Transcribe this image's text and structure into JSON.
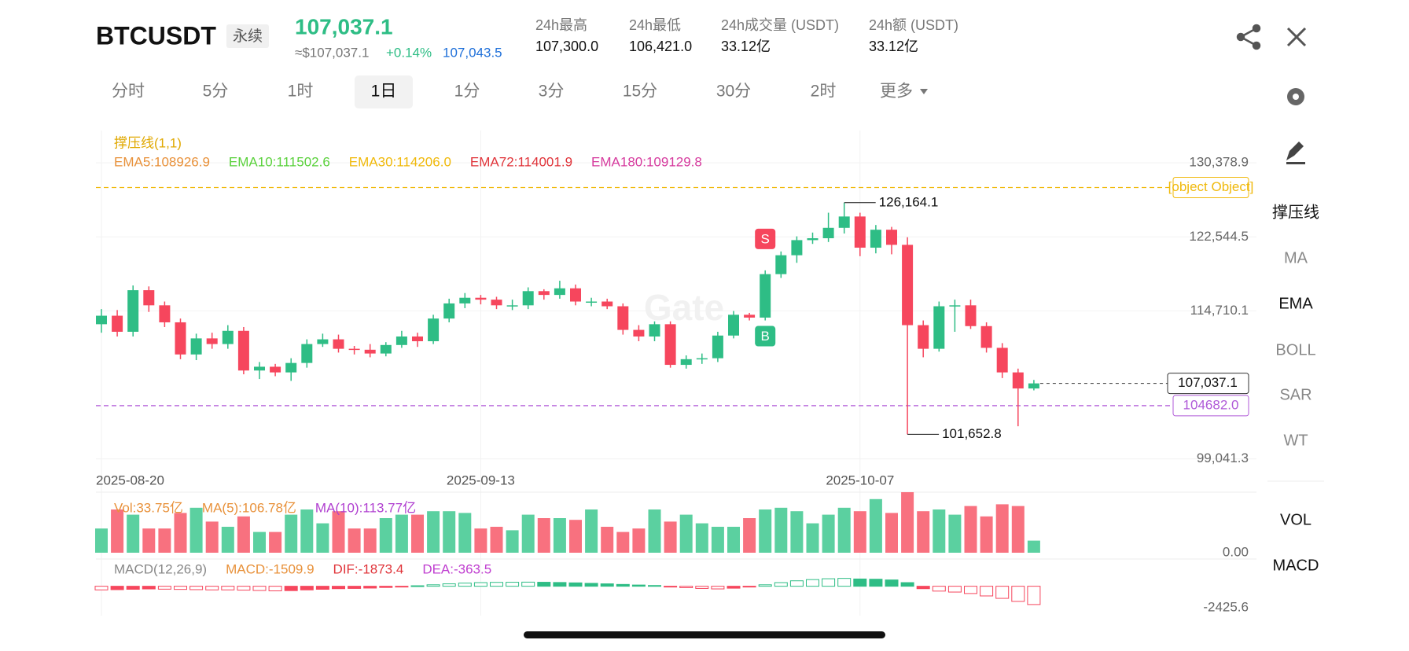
{
  "header": {
    "symbol": "BTCUSDT",
    "tag": "永续",
    "price": "107,037.1",
    "usd_price": "≈$107,037.1",
    "change": "+0.14%",
    "mark_price": "107,043.5",
    "stats": [
      {
        "label": "24h最高",
        "value": "107,300.0"
      },
      {
        "label": "24h最低",
        "value": "106,421.0"
      },
      {
        "label": "24h成交量 (USDT)",
        "value": "33.12亿"
      },
      {
        "label": "24h额 (USDT)",
        "value": "33.12亿"
      }
    ]
  },
  "tabs": [
    "分时",
    "5分",
    "1时",
    "1日",
    "1分",
    "3分",
    "15分",
    "30分",
    "2时",
    "更多"
  ],
  "active_tab": 3,
  "chart": {
    "indicator_title": "撑压线(1,1)",
    "watermark": "Gate",
    "ema_legend": [
      {
        "label": "EMA5:108926.9",
        "color": "#e8913a"
      },
      {
        "label": "EMA10:111502.6",
        "color": "#5ad13c"
      },
      {
        "label": "EMA30:114206.0",
        "color": "#f0b90b"
      },
      {
        "label": "EMA72:114001.9",
        "color": "#e0343a"
      },
      {
        "label": "EMA180:109129.8",
        "color": "#d63b9e"
      }
    ],
    "ylim": [
      98186,
      133800
    ],
    "yticks": [
      {
        "value": 99041.3,
        "label": "99,041.3"
      },
      {
        "value": 114710.1,
        "label": "114,710.1"
      },
      {
        "value": 122544.5,
        "label": "122,544.5"
      },
      {
        "value": 130378.9,
        "label": "130,378.9"
      }
    ],
    "up_color": "#2ebd85",
    "down_color": "#f6465d",
    "dates": [
      "2025-08-20",
      null,
      null,
      null,
      null,
      null,
      null,
      null,
      null,
      null,
      null,
      null,
      null,
      null,
      null,
      null,
      null,
      null,
      null,
      null,
      null,
      null,
      null,
      null,
      "2025-09-13",
      null,
      null,
      null,
      null,
      null,
      null,
      null,
      null,
      null,
      null,
      null,
      null,
      null,
      null,
      null,
      null,
      null,
      null,
      null,
      null,
      null,
      null,
      null,
      "2025-10-07",
      null,
      null,
      null,
      null,
      null,
      null,
      null,
      null,
      null,
      null,
      null
    ],
    "candles": [
      [
        113300,
        114900,
        112400,
        114200
      ],
      [
        114200,
        114800,
        112000,
        112500
      ],
      [
        112500,
        117400,
        112000,
        116900
      ],
      [
        116900,
        117300,
        114600,
        115300
      ],
      [
        115300,
        115700,
        113000,
        113500
      ],
      [
        113500,
        113900,
        109600,
        110100
      ],
      [
        110100,
        112300,
        109500,
        111800
      ],
      [
        111800,
        112400,
        110700,
        111200
      ],
      [
        111200,
        113200,
        110700,
        112600
      ],
      [
        112600,
        113000,
        108000,
        108400
      ],
      [
        108400,
        109300,
        107500,
        108800
      ],
      [
        108800,
        109100,
        107800,
        108200
      ],
      [
        108200,
        109700,
        107300,
        109200
      ],
      [
        109200,
        111700,
        108700,
        111200
      ],
      [
        111200,
        112300,
        110900,
        111700
      ],
      [
        111700,
        112200,
        110300,
        110700
      ],
      [
        110700,
        111000,
        110100,
        110600
      ],
      [
        110600,
        111200,
        109800,
        110200
      ],
      [
        110200,
        111400,
        109900,
        111100
      ],
      [
        111100,
        112600,
        110800,
        112000
      ],
      [
        112000,
        112400,
        110900,
        111500
      ],
      [
        111500,
        114300,
        111200,
        113900
      ],
      [
        113900,
        116000,
        113500,
        115500
      ],
      [
        115500,
        116600,
        115000,
        116100
      ],
      [
        116100,
        116400,
        115400,
        115900
      ],
      [
        115900,
        116200,
        114900,
        115300
      ],
      [
        115300,
        115900,
        114800,
        115300
      ],
      [
        115300,
        117200,
        114900,
        116800
      ],
      [
        116800,
        117000,
        115900,
        116400
      ],
      [
        116400,
        117900,
        116000,
        117100
      ],
      [
        117100,
        117500,
        115300,
        115700
      ],
      [
        115700,
        116100,
        115200,
        115700
      ],
      [
        115700,
        116000,
        114900,
        115200
      ],
      [
        115200,
        115500,
        112200,
        112700
      ],
      [
        112700,
        113200,
        111500,
        112000
      ],
      [
        112000,
        113600,
        111500,
        113300
      ],
      [
        113300,
        113600,
        108700,
        109000
      ],
      [
        109000,
        110000,
        108600,
        109600
      ],
      [
        109600,
        110200,
        109100,
        109700
      ],
      [
        109700,
        112500,
        109300,
        112100
      ],
      [
        112100,
        114700,
        111800,
        114300
      ],
      [
        114300,
        114500,
        113700,
        114000
      ],
      [
        114000,
        119000,
        113700,
        118600
      ],
      [
        118600,
        121000,
        118200,
        120600
      ],
      [
        120600,
        122600,
        119800,
        122200
      ],
      [
        122200,
        123000,
        121800,
        122400
      ],
      [
        122400,
        125100,
        122000,
        123500
      ],
      [
        123500,
        126164.1,
        122900,
        124700
      ],
      [
        124700,
        125100,
        120500,
        121400
      ],
      [
        121400,
        123800,
        120800,
        123300
      ],
      [
        123300,
        123600,
        120700,
        121700
      ],
      [
        121700,
        122500,
        101652.8,
        113200
      ],
      [
        113200,
        113700,
        109800,
        110700
      ],
      [
        110700,
        115700,
        110400,
        115200
      ],
      [
        115200,
        115900,
        112500,
        115300
      ],
      [
        115300,
        115900,
        112800,
        113100
      ],
      [
        113100,
        113500,
        110300,
        110800
      ],
      [
        110800,
        111300,
        107600,
        108200
      ],
      [
        108200,
        108600,
        102500,
        106500
      ],
      [
        106500,
        107400,
        106300,
        107037.1
      ]
    ],
    "levels": [
      {
        "value": 127767.4,
        "color": "#f0b90b"
      },
      {
        "value": 104682.0,
        "label": "104682.0",
        "color": "#b05ad8"
      }
    ],
    "last_price": {
      "value": 107037.1,
      "label": "107,037.1"
    },
    "high_annotation": {
      "value": 126164.1,
      "label": "126,164.1"
    },
    "low_annotation": {
      "value": 101652.8,
      "label": "101,652.8"
    },
    "signals": [
      {
        "label": "S",
        "candle": 42,
        "color": "#f6465d"
      },
      {
        "label": "B",
        "candle": 42,
        "color": "#2ebd85"
      }
    ],
    "volume": {
      "legend": [
        {
          "label": "Vol:33.75亿",
          "color": "#e8913a"
        },
        {
          "label": "MA(5):106.78亿",
          "color": "#e8913a"
        },
        {
          "label": "MA(10):113.77亿",
          "color": "#b03fd0"
        }
      ],
      "ylim": [
        0,
        70
      ],
      "zero_label": {
        "value": 0,
        "label": "0.00"
      },
      "values": [
        28,
        50,
        44,
        28,
        28,
        46,
        52,
        36,
        30,
        42,
        24,
        24,
        44,
        50,
        34,
        48,
        28,
        28,
        40,
        44,
        44,
        48,
        48,
        46,
        28,
        30,
        26,
        44,
        40,
        40,
        38,
        50,
        30,
        24,
        28,
        50,
        36,
        44,
        34,
        30,
        30,
        40,
        50,
        52,
        48,
        34,
        44,
        52,
        48,
        62,
        46,
        70,
        48,
        50,
        44,
        54,
        42,
        56,
        54,
        14
      ]
    },
    "macd": {
      "legend": [
        {
          "label": "MACD(12,26,9)",
          "color": "#888"
        },
        {
          "label": "MACD:-1509.9",
          "color": "#e8913a"
        },
        {
          "label": "DIF:-1873.4",
          "color": "#e0343a"
        },
        {
          "label": "DEA:-363.5",
          "color": "#c03fd0"
        }
      ],
      "ylim": [
        -2425.6,
        2250
      ],
      "bottom_label": {
        "value": -2425.6,
        "label": "-2425.6"
      },
      "values": [
        -300,
        -280,
        -250,
        -220,
        -240,
        -260,
        -280,
        -300,
        -300,
        -320,
        -350,
        -380,
        -360,
        -300,
        -250,
        -200,
        -180,
        -150,
        -100,
        -60,
        40,
        120,
        200,
        260,
        300,
        320,
        330,
        340,
        330,
        310,
        280,
        240,
        200,
        150,
        100,
        60,
        -40,
        -120,
        -180,
        -220,
        -160,
        -60,
        120,
        300,
        450,
        550,
        620,
        650,
        600,
        580,
        520,
        300,
        -200,
        -400,
        -480,
        -600,
        -800,
        -1000,
        -1250,
        -1509.9
      ]
    }
  },
  "side_menu": [
    {
      "label": "撑压线",
      "active": true
    },
    {
      "label": "MA",
      "active": false
    },
    {
      "label": "EMA",
      "active": true
    },
    {
      "label": "BOLL",
      "active": false
    },
    {
      "label": "SAR",
      "active": false
    },
    {
      "label": "WT",
      "active": false
    },
    {
      "label": "VOL",
      "active": true
    },
    {
      "label": "MACD",
      "active": true
    }
  ]
}
